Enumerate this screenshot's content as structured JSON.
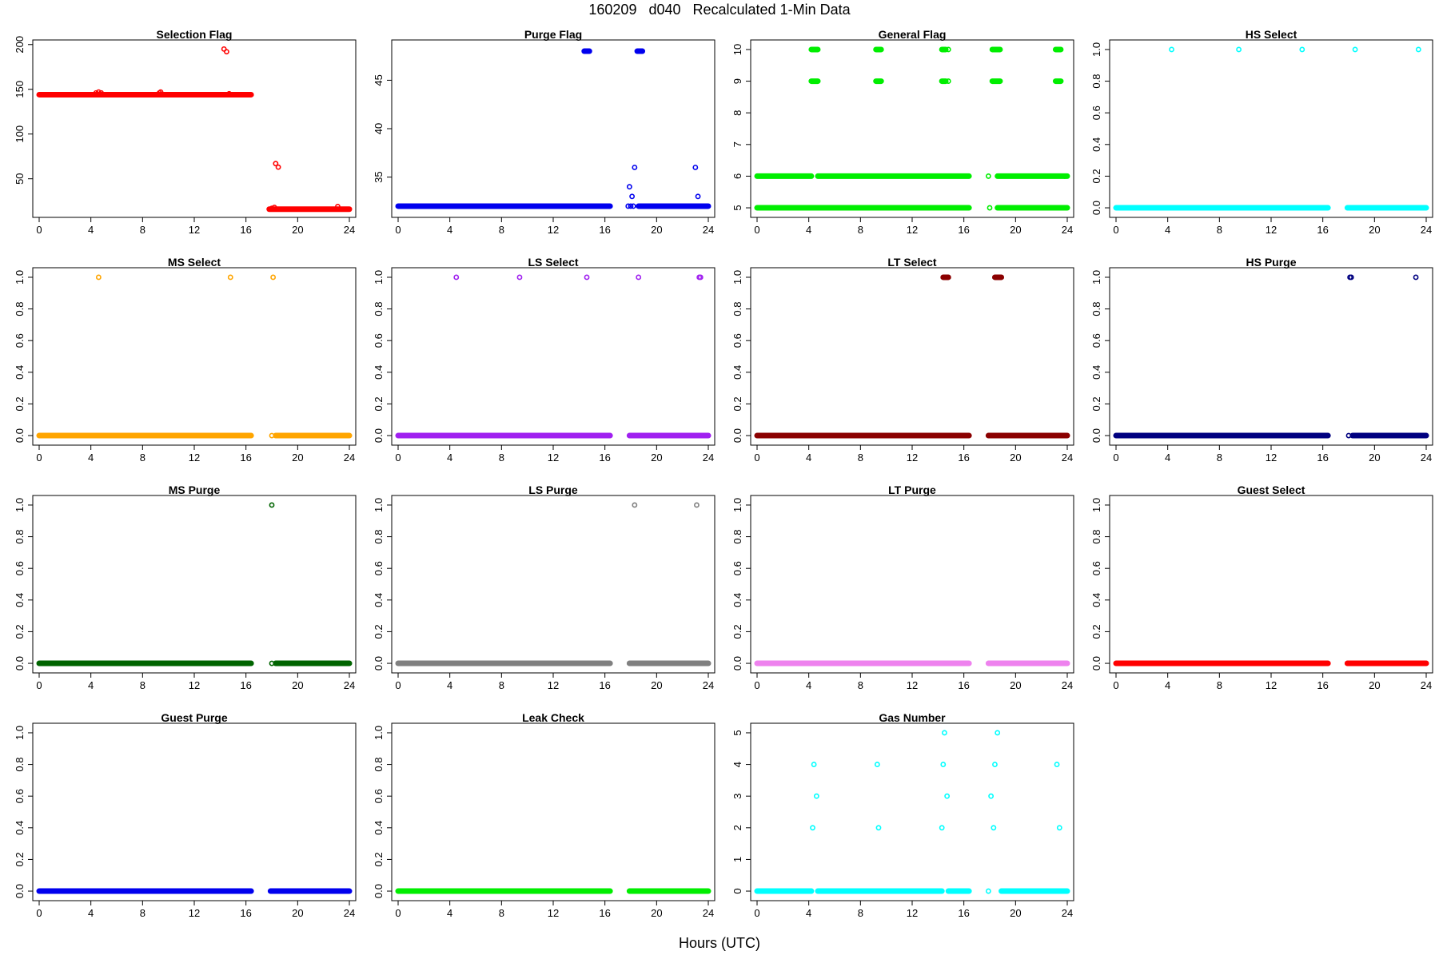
{
  "title": "160209   d040   Recalculated 1-Min Data",
  "xlabel": "Hours (UTC)",
  "chart_data": [
    {
      "type": "scatter",
      "title": "Selection Flag",
      "color": "#ff0000",
      "xlim": [
        0,
        24
      ],
      "ylim": [
        14,
        198
      ],
      "yticks": [
        50,
        100,
        150,
        200
      ],
      "xticks": [
        0,
        4,
        8,
        12,
        16,
        20,
        24
      ],
      "segments": [
        {
          "x0": 0,
          "x1": 16.4,
          "y": 144
        },
        {
          "x0": 17.8,
          "x1": 24,
          "y": 16
        }
      ],
      "points": [
        [
          4.4,
          146
        ],
        [
          4.6,
          147
        ],
        [
          4.8,
          146
        ],
        [
          9.3,
          146
        ],
        [
          9.4,
          147
        ],
        [
          14.3,
          195
        ],
        [
          14.5,
          192
        ],
        [
          14.7,
          145
        ],
        [
          18.3,
          67
        ],
        [
          18.5,
          63
        ],
        [
          23.1,
          19
        ],
        [
          18.0,
          17
        ],
        [
          18.2,
          18
        ]
      ]
    },
    {
      "type": "scatter",
      "title": "Purge Flag",
      "color": "#0000ee",
      "xlim": [
        0,
        24
      ],
      "ylim": [
        31.5,
        48.5
      ],
      "yticks": [
        35,
        40,
        45
      ],
      "xticks": [
        0,
        4,
        8,
        12,
        16,
        20,
        24
      ],
      "segments": [
        {
          "x0": 0,
          "x1": 16.4,
          "y": 32
        },
        {
          "x0": 18.6,
          "x1": 24,
          "y": 32
        },
        {
          "x0": 14.4,
          "x1": 14.8,
          "y": 48
        },
        {
          "x0": 18.5,
          "x1": 18.9,
          "y": 48
        }
      ],
      "points": [
        [
          17.9,
          34
        ],
        [
          18.1,
          33
        ],
        [
          18.3,
          36
        ],
        [
          17.8,
          32
        ],
        [
          18.0,
          32
        ],
        [
          18.2,
          32
        ],
        [
          23.0,
          36
        ],
        [
          23.2,
          33
        ]
      ]
    },
    {
      "type": "scatter",
      "title": "General Flag",
      "color": "#00ee00",
      "xlim": [
        0,
        24
      ],
      "ylim": [
        4.9,
        10.1
      ],
      "yticks": [
        5,
        6,
        7,
        8,
        9,
        10
      ],
      "xticks": [
        0,
        4,
        8,
        12,
        16,
        20,
        24
      ],
      "segments": [
        {
          "x0": 0,
          "x1": 16.4,
          "y": 5
        },
        {
          "x0": 18.6,
          "x1": 24,
          "y": 5
        },
        {
          "x0": 0,
          "x1": 4.2,
          "y": 6
        },
        {
          "x0": 4.7,
          "x1": 16.4,
          "y": 6
        },
        {
          "x0": 18.6,
          "x1": 24,
          "y": 6
        },
        {
          "x0": 4.2,
          "x1": 4.7,
          "y": 10
        },
        {
          "x0": 9.2,
          "x1": 9.6,
          "y": 10
        },
        {
          "x0": 14.3,
          "x1": 14.6,
          "y": 10
        },
        {
          "x0": 18.2,
          "x1": 18.8,
          "y": 10
        },
        {
          "x0": 23.1,
          "x1": 23.5,
          "y": 10
        },
        {
          "x0": 4.2,
          "x1": 4.7,
          "y": 9
        },
        {
          "x0": 9.2,
          "x1": 9.6,
          "y": 9
        },
        {
          "x0": 14.3,
          "x1": 14.6,
          "y": 9
        },
        {
          "x0": 18.2,
          "x1": 18.8,
          "y": 9
        },
        {
          "x0": 23.1,
          "x1": 23.5,
          "y": 9
        }
      ],
      "points": [
        [
          14.8,
          10
        ],
        [
          14.8,
          9
        ],
        [
          17.9,
          6
        ],
        [
          18.0,
          5
        ],
        [
          23.7,
          5
        ],
        [
          23.8,
          6
        ],
        [
          9.4,
          5
        ],
        [
          14.5,
          5
        ]
      ]
    },
    {
      "type": "scatter",
      "title": "HS Select",
      "color": "#00ffff",
      "xlim": [
        0,
        24
      ],
      "ylim": [
        -0.02,
        1.02
      ],
      "yticks": [
        0.0,
        0.2,
        0.4,
        0.6,
        0.8,
        1.0
      ],
      "xticks": [
        0,
        4,
        8,
        12,
        16,
        20,
        24
      ],
      "segments": [
        {
          "x0": 0,
          "x1": 16.4,
          "y": 0
        },
        {
          "x0": 17.9,
          "x1": 24,
          "y": 0
        }
      ],
      "points": [
        [
          4.3,
          1
        ],
        [
          9.5,
          1
        ],
        [
          14.4,
          1
        ],
        [
          18.5,
          1
        ],
        [
          23.4,
          1
        ]
      ]
    },
    {
      "type": "scatter",
      "title": "MS Select",
      "color": "#ffa500",
      "xlim": [
        0,
        24
      ],
      "ylim": [
        -0.02,
        1.02
      ],
      "yticks": [
        0.0,
        0.2,
        0.4,
        0.6,
        0.8,
        1.0
      ],
      "xticks": [
        0,
        4,
        8,
        12,
        16,
        20,
        24
      ],
      "segments": [
        {
          "x0": 0,
          "x1": 16.4,
          "y": 0
        },
        {
          "x0": 18.3,
          "x1": 24,
          "y": 0
        }
      ],
      "points": [
        [
          4.6,
          1
        ],
        [
          14.8,
          1
        ],
        [
          18.1,
          1
        ],
        [
          18.0,
          0
        ]
      ]
    },
    {
      "type": "scatter",
      "title": "LS Select",
      "color": "#a020f0",
      "xlim": [
        0,
        24
      ],
      "ylim": [
        -0.02,
        1.02
      ],
      "yticks": [
        0.0,
        0.2,
        0.4,
        0.6,
        0.8,
        1.0
      ],
      "xticks": [
        0,
        4,
        8,
        12,
        16,
        20,
        24
      ],
      "segments": [
        {
          "x0": 0,
          "x1": 16.4,
          "y": 0
        },
        {
          "x0": 17.9,
          "x1": 24,
          "y": 0
        }
      ],
      "points": [
        [
          4.5,
          1
        ],
        [
          9.4,
          1
        ],
        [
          14.6,
          1
        ],
        [
          18.6,
          1
        ],
        [
          23.3,
          1
        ],
        [
          23.4,
          1
        ]
      ]
    },
    {
      "type": "scatter",
      "title": "LT Select",
      "color": "#8b0000",
      "xlim": [
        0,
        24
      ],
      "ylim": [
        -0.02,
        1.02
      ],
      "yticks": [
        0.0,
        0.2,
        0.4,
        0.6,
        0.8,
        1.0
      ],
      "xticks": [
        0,
        4,
        8,
        12,
        16,
        20,
        24
      ],
      "segments": [
        {
          "x0": 0,
          "x1": 16.4,
          "y": 0
        },
        {
          "x0": 17.9,
          "x1": 24,
          "y": 0
        },
        {
          "x0": 14.4,
          "x1": 14.8,
          "y": 1
        },
        {
          "x0": 18.4,
          "x1": 18.9,
          "y": 1
        }
      ],
      "points": []
    },
    {
      "type": "scatter",
      "title": "HS Purge",
      "color": "#000080",
      "xlim": [
        0,
        24
      ],
      "ylim": [
        -0.02,
        1.02
      ],
      "yticks": [
        0.0,
        0.2,
        0.4,
        0.6,
        0.8,
        1.0
      ],
      "xticks": [
        0,
        4,
        8,
        12,
        16,
        20,
        24
      ],
      "segments": [
        {
          "x0": 0,
          "x1": 16.4,
          "y": 0
        },
        {
          "x0": 18.3,
          "x1": 24,
          "y": 0
        }
      ],
      "points": [
        [
          18.1,
          1
        ],
        [
          18.2,
          1
        ],
        [
          23.2,
          1
        ],
        [
          18.0,
          0
        ]
      ]
    },
    {
      "type": "scatter",
      "title": "MS Purge",
      "color": "#006400",
      "xlim": [
        0,
        24
      ],
      "ylim": [
        -0.02,
        1.02
      ],
      "yticks": [
        0.0,
        0.2,
        0.4,
        0.6,
        0.8,
        1.0
      ],
      "xticks": [
        0,
        4,
        8,
        12,
        16,
        20,
        24
      ],
      "segments": [
        {
          "x0": 0,
          "x1": 16.4,
          "y": 0
        },
        {
          "x0": 18.3,
          "x1": 24,
          "y": 0
        }
      ],
      "points": [
        [
          18.0,
          1
        ],
        [
          18.0,
          0
        ]
      ]
    },
    {
      "type": "scatter",
      "title": "LS Purge",
      "color": "#808080",
      "xlim": [
        0,
        24
      ],
      "ylim": [
        -0.02,
        1.02
      ],
      "yticks": [
        0.0,
        0.2,
        0.4,
        0.6,
        0.8,
        1.0
      ],
      "xticks": [
        0,
        4,
        8,
        12,
        16,
        20,
        24
      ],
      "segments": [
        {
          "x0": 0,
          "x1": 16.4,
          "y": 0
        },
        {
          "x0": 17.9,
          "x1": 24,
          "y": 0
        }
      ],
      "points": [
        [
          18.3,
          1
        ],
        [
          23.1,
          1
        ]
      ]
    },
    {
      "type": "scatter",
      "title": "LT Purge",
      "color": "#ee82ee",
      "xlim": [
        0,
        24
      ],
      "ylim": [
        -0.02,
        1.02
      ],
      "yticks": [
        0.0,
        0.2,
        0.4,
        0.6,
        0.8,
        1.0
      ],
      "xticks": [
        0,
        4,
        8,
        12,
        16,
        20,
        24
      ],
      "segments": [
        {
          "x0": 0,
          "x1": 16.4,
          "y": 0
        },
        {
          "x0": 17.9,
          "x1": 24,
          "y": 0
        }
      ],
      "points": []
    },
    {
      "type": "scatter",
      "title": "Guest Select",
      "color": "#ff0000",
      "xlim": [
        0,
        24
      ],
      "ylim": [
        -0.02,
        1.02
      ],
      "yticks": [
        0.0,
        0.2,
        0.4,
        0.6,
        0.8,
        1.0
      ],
      "xticks": [
        0,
        4,
        8,
        12,
        16,
        20,
        24
      ],
      "segments": [
        {
          "x0": 0,
          "x1": 16.4,
          "y": 0
        },
        {
          "x0": 17.9,
          "x1": 24,
          "y": 0
        }
      ],
      "points": []
    },
    {
      "type": "scatter",
      "title": "Guest Purge",
      "color": "#0000ee",
      "xlim": [
        0,
        24
      ],
      "ylim": [
        -0.02,
        1.02
      ],
      "yticks": [
        0.0,
        0.2,
        0.4,
        0.6,
        0.8,
        1.0
      ],
      "xticks": [
        0,
        4,
        8,
        12,
        16,
        20,
        24
      ],
      "segments": [
        {
          "x0": 0,
          "x1": 16.4,
          "y": 0
        },
        {
          "x0": 17.9,
          "x1": 24,
          "y": 0
        }
      ],
      "points": []
    },
    {
      "type": "scatter",
      "title": "Leak Check",
      "color": "#00ee00",
      "xlim": [
        0,
        24
      ],
      "ylim": [
        -0.02,
        1.02
      ],
      "yticks": [
        0.0,
        0.2,
        0.4,
        0.6,
        0.8,
        1.0
      ],
      "xticks": [
        0,
        4,
        8,
        12,
        16,
        20,
        24
      ],
      "segments": [
        {
          "x0": 0,
          "x1": 16.4,
          "y": 0
        },
        {
          "x0": 17.9,
          "x1": 24,
          "y": 0
        }
      ],
      "points": []
    },
    {
      "type": "scatter",
      "title": "Gas Number",
      "color": "#00ffff",
      "xlim": [
        0,
        24
      ],
      "ylim": [
        -0.1,
        5.1
      ],
      "yticks": [
        0,
        1,
        2,
        3,
        4,
        5
      ],
      "xticks": [
        0,
        4,
        8,
        12,
        16,
        20,
        24
      ],
      "segments": [
        {
          "x0": 0,
          "x1": 4.2,
          "y": 0
        },
        {
          "x0": 4.7,
          "x1": 14.3,
          "y": 0
        },
        {
          "x0": 14.8,
          "x1": 16.4,
          "y": 0
        },
        {
          "x0": 18.9,
          "x1": 24,
          "y": 0
        }
      ],
      "points": [
        [
          4.4,
          4
        ],
        [
          4.6,
          3
        ],
        [
          4.3,
          2
        ],
        [
          9.3,
          4
        ],
        [
          9.4,
          2
        ],
        [
          14.4,
          4
        ],
        [
          14.3,
          2
        ],
        [
          14.5,
          5
        ],
        [
          14.7,
          3
        ],
        [
          18.1,
          3
        ],
        [
          18.3,
          2
        ],
        [
          18.4,
          4
        ],
        [
          18.6,
          5
        ],
        [
          23.2,
          4
        ],
        [
          23.4,
          2
        ],
        [
          17.9,
          0
        ],
        [
          23.8,
          0
        ]
      ]
    }
  ]
}
